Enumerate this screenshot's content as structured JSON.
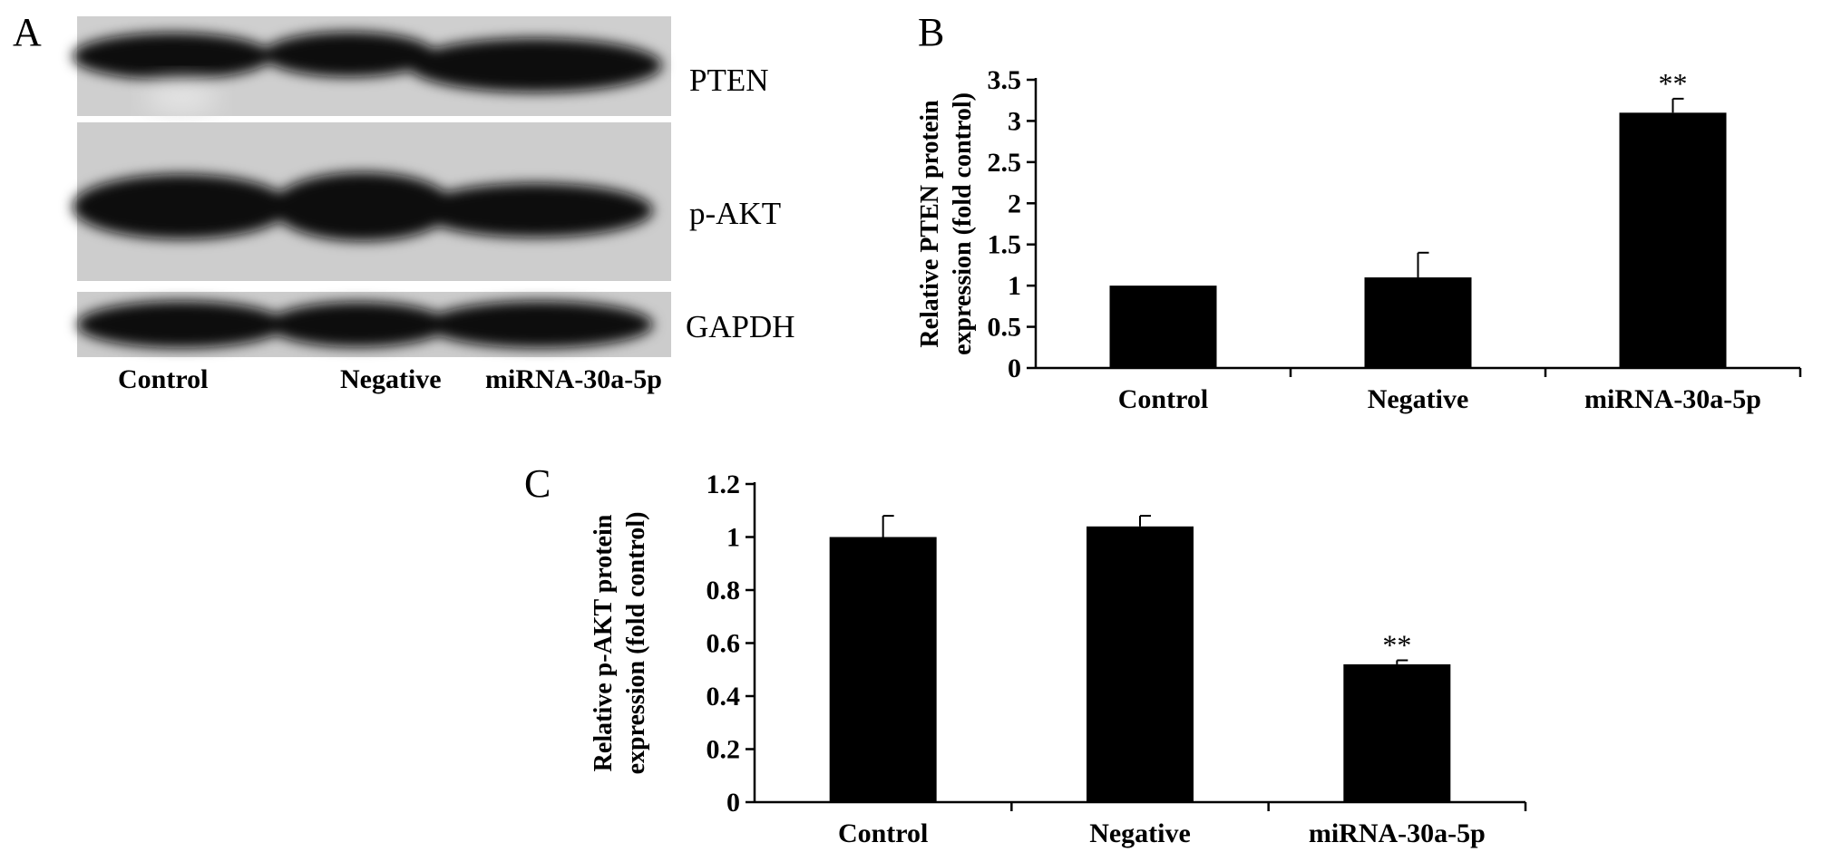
{
  "panels": {
    "a": "A",
    "b": "B",
    "c": "C"
  },
  "blot": {
    "proteins": [
      "PTEN",
      "p-AKT",
      "GAPDH"
    ],
    "lanes": [
      "Control",
      "Negative",
      "miRNA-30a-5p"
    ]
  },
  "chart_data": [
    {
      "type": "bar",
      "panel": "B",
      "categories": [
        "Control",
        "Negative",
        "miRNA-30a-5p"
      ],
      "values": [
        1.0,
        1.1,
        3.1
      ],
      "errors": [
        0.0,
        0.3,
        0.17
      ],
      "annotations": [
        "",
        "",
        "**"
      ],
      "ylabel_lines": [
        "Relative PTEN protein",
        "expression (fold control)"
      ],
      "xlabel": "",
      "ylim": [
        0,
        3.5
      ],
      "yticks": [
        "0",
        "0.5",
        "1",
        "1.5",
        "2",
        "2.5",
        "3",
        "3.5"
      ],
      "grid": false,
      "bar_color": "#000000"
    },
    {
      "type": "bar",
      "panel": "C",
      "categories": [
        "Control",
        "Negative",
        "miRNA-30a-5p"
      ],
      "values": [
        1.0,
        1.04,
        0.52
      ],
      "errors": [
        0.08,
        0.04,
        0.015
      ],
      "annotations": [
        "",
        "",
        "**"
      ],
      "ylabel_lines": [
        "Relative p-AKT protein",
        "expression (fold control)"
      ],
      "xlabel": "",
      "ylim": [
        0,
        1.2
      ],
      "yticks": [
        "0",
        "0.2",
        "0.4",
        "0.6",
        "0.8",
        "1",
        "1.2"
      ],
      "grid": false,
      "bar_color": "#000000"
    }
  ]
}
